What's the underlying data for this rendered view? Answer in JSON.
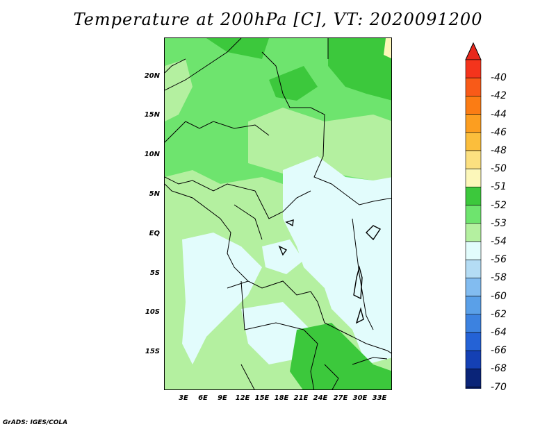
{
  "title": "Temperature at 200hPa [C], VT: 2020091200",
  "footer": "GrADS: IGES/COLA",
  "map": {
    "lat_labels": [
      "20N",
      "15N",
      "10N",
      "5N",
      "EQ",
      "5S",
      "10S",
      "15S"
    ],
    "lon_labels": [
      "3E",
      "6E",
      "9E",
      "12E",
      "15E",
      "18E",
      "21E",
      "24E",
      "27E",
      "30E",
      "33E"
    ]
  },
  "colorbar": {
    "labels": [
      "-40",
      "-42",
      "-44",
      "-46",
      "-48",
      "-50",
      "-51",
      "-52",
      "-53",
      "-54",
      "-56",
      "-58",
      "-60",
      "-62",
      "-64",
      "-66",
      "-68",
      "-70"
    ],
    "colors": [
      "#f4341c",
      "#f85a18",
      "#fb7c14",
      "#fc9e20",
      "#fbbe3c",
      "#fce080",
      "#fcf7ba",
      "#3cc83c",
      "#6ee46e",
      "#b4f0a0",
      "#e2fcfc",
      "#b4dcf4",
      "#82bcf0",
      "#5aa0e8",
      "#3c82e0",
      "#2462d6",
      "#1440b4",
      "#0a2478",
      "#081a5a"
    ],
    "end_colors": {
      "top": "#e8281c",
      "bottom": "#d8d8f0"
    }
  },
  "palette": {
    "c52": "#3cc83c",
    "c53": "#6ee46e",
    "c54": "#b4f0a0",
    "c56": "#e2fcfc",
    "c50": "#fcf7ba",
    "c48": "#fce080"
  }
}
